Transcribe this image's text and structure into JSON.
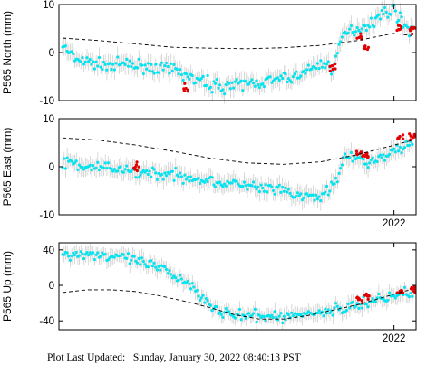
{
  "footer": {
    "label": "Plot Last Updated:",
    "timestamp": "Sunday, January 30, 2022 08:40:13 PST"
  },
  "colors": {
    "data": "#00e5f0",
    "recent": "#e00000",
    "errorbar": "#cfcfcf",
    "model": "#000000",
    "frame": "#000000"
  },
  "chart_data": [
    {
      "type": "scatter",
      "ylabel": "P565 North (mm)",
      "ylim": [
        -10,
        10
      ],
      "yticks": [
        -10,
        0,
        10
      ],
      "xlim": [
        2019.27,
        2022.18
      ],
      "xticks": [
        {
          "value": 2022.0,
          "label": "2022"
        }
      ],
      "x_tick_label_shown": false,
      "series": [
        {
          "role": "daily",
          "color": "cyan",
          "x": [
            2019.3,
            2019.4,
            2019.6,
            2019.8,
            2020.0,
            2020.2,
            2020.4,
            2020.6,
            2020.8,
            2021.0,
            2021.2,
            2021.4,
            2021.5,
            2021.6,
            2021.7,
            2021.8,
            2021.9,
            2022.0,
            2022.1
          ],
          "y": [
            1.5,
            -1.5,
            -2.5,
            -2.5,
            -3,
            -3.5,
            -6,
            -7,
            -6.5,
            -6,
            -5,
            -2.5,
            -3,
            4,
            5,
            6,
            8,
            9,
            5
          ]
        },
        {
          "role": "recent",
          "color": "red",
          "x": [
            2020.3,
            2021.5,
            2021.72,
            2021.78,
            2022.05,
            2022.15
          ],
          "y": [
            -7.5,
            -3,
            3,
            1,
            5,
            4.5
          ]
        },
        {
          "role": "model",
          "style": "dashed",
          "x": [
            2019.3,
            2019.6,
            2019.9,
            2020.2,
            2020.5,
            2020.8,
            2021.1,
            2021.4,
            2021.7,
            2022.0,
            2022.15
          ],
          "y": [
            3,
            2.5,
            1.8,
            1.1,
            0.9,
            0.8,
            1.0,
            1.5,
            2.5,
            4.0,
            3.5
          ]
        }
      ]
    },
    {
      "type": "scatter",
      "ylabel": "P565 East (mm)",
      "ylim": [
        -10,
        10
      ],
      "yticks": [
        -10,
        0,
        10
      ],
      "xlim": [
        2019.27,
        2022.18
      ],
      "xticks": [
        {
          "value": 2022.0,
          "label": "2022"
        }
      ],
      "x_tick_label_shown": true,
      "series": [
        {
          "role": "daily",
          "color": "cyan",
          "x": [
            2019.3,
            2019.5,
            2019.7,
            2019.9,
            2020.1,
            2020.3,
            2020.5,
            2020.7,
            2020.9,
            2021.1,
            2021.2,
            2021.4,
            2021.5,
            2021.6,
            2021.8,
            2022.0,
            2022.1
          ],
          "y": [
            1,
            0,
            -0.5,
            -1,
            -1.5,
            -2,
            -3,
            -3.5,
            -4.5,
            -5,
            -6,
            -6.5,
            -4,
            2,
            1,
            3,
            5
          ]
        },
        {
          "role": "recent",
          "color": "red",
          "x": [
            2019.9,
            2021.72,
            2021.78,
            2022.05,
            2022.15
          ],
          "y": [
            0,
            3,
            2,
            6,
            6.5
          ]
        },
        {
          "role": "model",
          "style": "dashed",
          "x": [
            2019.3,
            2019.6,
            2019.9,
            2020.2,
            2020.5,
            2020.8,
            2021.1,
            2021.4,
            2021.7,
            2022.0,
            2022.15
          ],
          "y": [
            6,
            5.5,
            4.5,
            3.2,
            1.8,
            0.8,
            0.5,
            1.0,
            2.5,
            4.5,
            5.5
          ]
        }
      ]
    },
    {
      "type": "scatter",
      "ylabel": "P565 Up (mm)",
      "ylim": [
        -50,
        48
      ],
      "yticks": [
        -40,
        0,
        40
      ],
      "xlim": [
        2019.27,
        2022.18
      ],
      "xticks": [
        {
          "value": 2022.0,
          "label": "2022"
        }
      ],
      "x_tick_label_shown": true,
      "series": [
        {
          "role": "daily",
          "color": "cyan",
          "x": [
            2019.3,
            2019.5,
            2019.7,
            2019.9,
            2020.1,
            2020.3,
            2020.5,
            2020.6,
            2020.8,
            2021.0,
            2021.2,
            2021.4,
            2021.6,
            2021.8,
            2022.0,
            2022.1
          ],
          "y": [
            35,
            36,
            33,
            28,
            18,
            5,
            -20,
            -32,
            -35,
            -36,
            -34,
            -30,
            -26,
            -18,
            -12,
            -8
          ]
        },
        {
          "role": "recent",
          "color": "red",
          "x": [
            2021.72,
            2021.78,
            2022.05,
            2022.15
          ],
          "y": [
            -15,
            -13,
            -6,
            -4
          ]
        },
        {
          "role": "model",
          "style": "dashed",
          "x": [
            2019.3,
            2019.5,
            2019.7,
            2019.9,
            2020.1,
            2020.3,
            2020.5,
            2020.7,
            2020.9,
            2021.1,
            2021.3,
            2021.5,
            2021.7,
            2021.9,
            2022.1,
            2022.15
          ],
          "y": [
            -8,
            -5,
            -5,
            -7,
            -12,
            -18,
            -25,
            -33,
            -38,
            -38,
            -34,
            -28,
            -22,
            -14,
            -6,
            -5
          ]
        }
      ]
    }
  ]
}
